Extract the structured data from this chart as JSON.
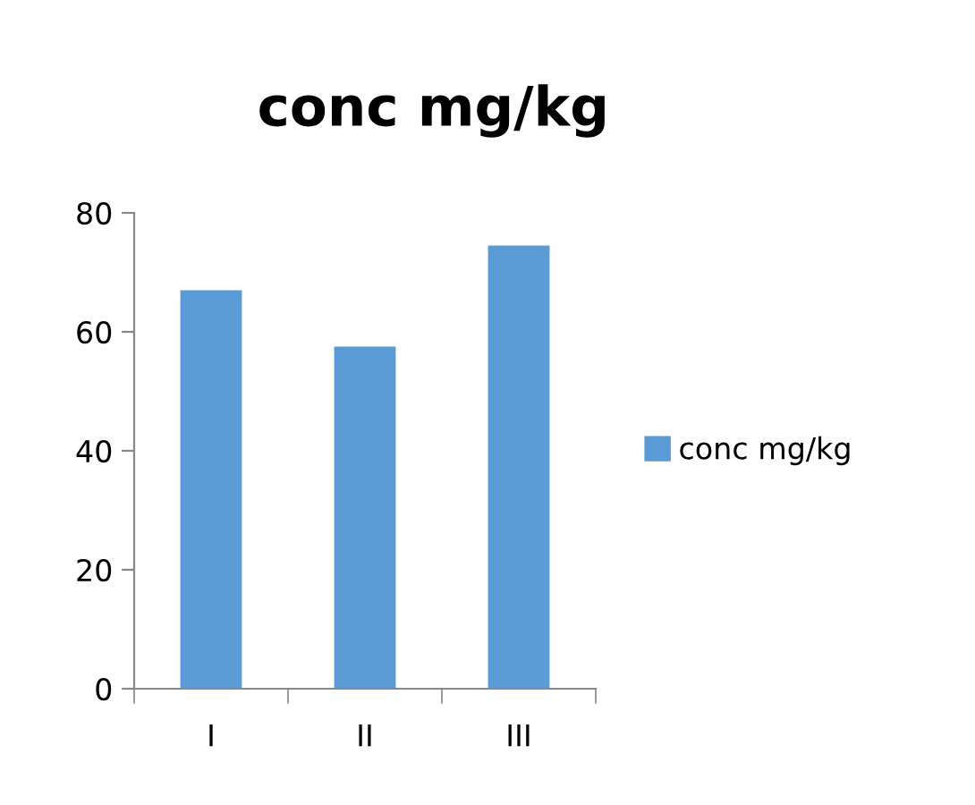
{
  "chart_data": {
    "type": "bar",
    "title": "conc mg/kg",
    "categories": [
      "I",
      "II",
      "III"
    ],
    "series": [
      {
        "name": "conc mg/kg",
        "color": "#5b9bd5",
        "values": [
          67,
          57.5,
          74.5
        ]
      }
    ],
    "ylim": [
      0,
      80
    ],
    "yticks": [
      0,
      20,
      40,
      60,
      80
    ],
    "grid": false,
    "legend": "right"
  }
}
